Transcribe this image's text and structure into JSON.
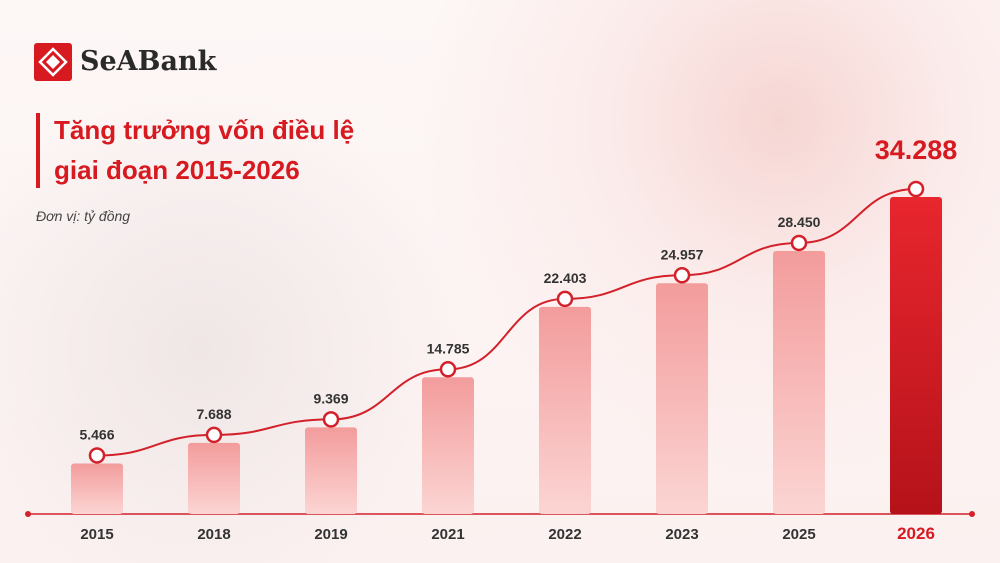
{
  "brand": "SeABank",
  "chart_data": {
    "type": "bar",
    "title": "Tăng trưởng vốn điều lệ giai đoạn 2015-2026",
    "subtitle": "Đơn vị: tỷ đồng",
    "categories": [
      "2015",
      "2018",
      "2019",
      "2021",
      "2022",
      "2023",
      "2025",
      "2026"
    ],
    "values": [
      5466,
      7688,
      9369,
      14785,
      22403,
      24957,
      28450,
      34288
    ],
    "value_labels": [
      "5.466",
      "7.688",
      "9.369",
      "14.785",
      "22.403",
      "24.957",
      "28.450",
      "34.288"
    ],
    "color": "#f4a3a3",
    "highlight_color": "#d71920",
    "line_color": "#d3212b"
  }
}
